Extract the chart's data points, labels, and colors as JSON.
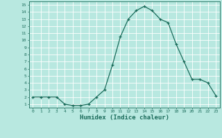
{
  "x": [
    0,
    1,
    2,
    3,
    4,
    5,
    6,
    7,
    8,
    9,
    10,
    11,
    12,
    13,
    14,
    15,
    16,
    17,
    18,
    19,
    20,
    21,
    22,
    23
  ],
  "y": [
    2,
    2,
    2,
    2,
    1,
    0.8,
    0.8,
    1,
    2,
    3,
    6.5,
    10.5,
    13,
    14.2,
    14.8,
    14.2,
    13,
    12.5,
    9.5,
    7,
    4.5,
    4.5,
    4,
    2.2
  ],
  "line_color": "#1a6b5a",
  "bg_color": "#b8e8e0",
  "grid_color": "#d8f0ec",
  "xlabel": "Humidex (Indice chaleur)",
  "xlim": [
    -0.5,
    23.5
  ],
  "ylim": [
    0.5,
    15.5
  ],
  "yticks": [
    1,
    2,
    3,
    4,
    5,
    6,
    7,
    8,
    9,
    10,
    11,
    12,
    13,
    14,
    15
  ],
  "xticks": [
    0,
    1,
    2,
    3,
    4,
    5,
    6,
    7,
    8,
    9,
    10,
    11,
    12,
    13,
    14,
    15,
    16,
    17,
    18,
    19,
    20,
    21,
    22,
    23
  ],
  "marker": "+",
  "marker_size": 3,
  "linewidth": 0.9
}
